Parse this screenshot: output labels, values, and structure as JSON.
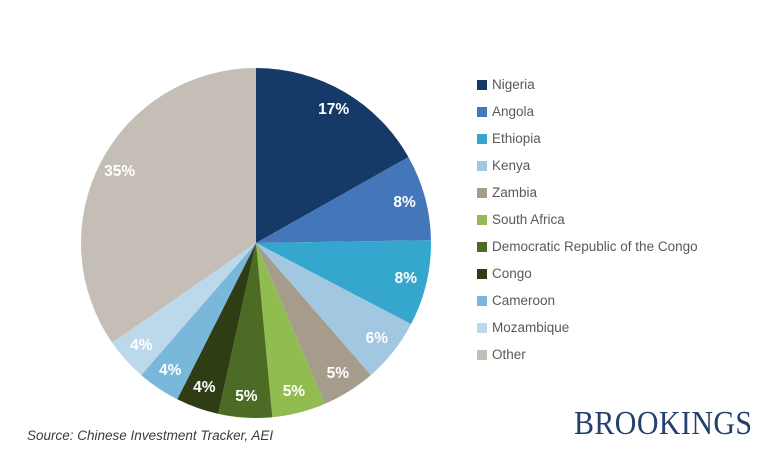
{
  "chart_data": {
    "type": "pie",
    "title": "",
    "legend_position": "right",
    "slice_label_color": "#FFFFFF",
    "legend_text_color": "#595959",
    "slices": [
      {
        "label": "Nigeria",
        "value": 17,
        "color": "#163A67"
      },
      {
        "label": "Angola",
        "value": 8,
        "color": "#4377B9"
      },
      {
        "label": "Ethiopia",
        "value": 8,
        "color": "#35A7CE"
      },
      {
        "label": "Kenya",
        "value": 6,
        "color": "#A1C7E1"
      },
      {
        "label": "Zambia",
        "value": 5,
        "color": "#A59C8C"
      },
      {
        "label": "South Africa",
        "value": 5,
        "color": "#90BC50"
      },
      {
        "label": "Democratic Republic of the Congo",
        "value": 5,
        "color": "#4C6C26"
      },
      {
        "label": "Congo",
        "value": 4,
        "color": "#2F3D15"
      },
      {
        "label": "Cameroon",
        "value": 4,
        "color": "#79B7DB"
      },
      {
        "label": "Mozambique",
        "value": 4,
        "color": "#BCD8EB"
      },
      {
        "label": "Other",
        "value": 35,
        "color": "#C4BEB6"
      }
    ],
    "value_suffix": "%"
  },
  "source_note": "Source: Chinese Investment Tracker, AEI",
  "logo": {
    "text": "BROOKINGS",
    "color": "#23406F"
  }
}
